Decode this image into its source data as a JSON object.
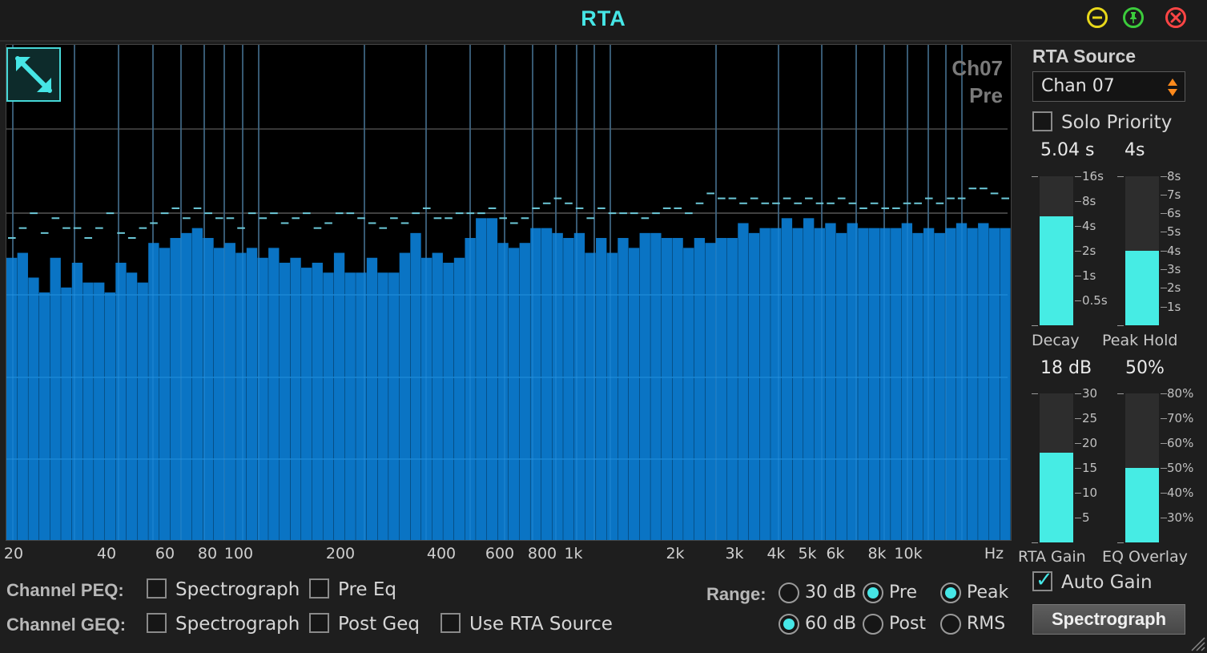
{
  "window": {
    "title": "RTA",
    "minimize_color": "#f0e020",
    "pin_color": "#3ccc3c",
    "close_color": "#ff4040"
  },
  "graph": {
    "channel": "Ch07",
    "tap": "Pre",
    "freq_labels": [
      "20",
      "40",
      "60",
      "80",
      "100",
      "200",
      "400",
      "600",
      "800",
      "1k",
      "2k",
      "3k",
      "4k",
      "5k",
      "6k",
      "8k",
      "10k",
      "Hz"
    ],
    "bar_color": "#0a74c4",
    "peak_color": "#6cc8d8"
  },
  "chart_data": {
    "type": "bar",
    "x_scale": "log",
    "xlim": [
      20,
      20000
    ],
    "x_unit": "Hz",
    "levels": [
      0.57,
      0.58,
      0.53,
      0.5,
      0.57,
      0.51,
      0.56,
      0.52,
      0.52,
      0.5,
      0.56,
      0.54,
      0.52,
      0.6,
      0.59,
      0.61,
      0.62,
      0.63,
      0.61,
      0.59,
      0.6,
      0.58,
      0.59,
      0.57,
      0.59,
      0.56,
      0.57,
      0.55,
      0.56,
      0.54,
      0.58,
      0.54,
      0.54,
      0.57,
      0.54,
      0.54,
      0.58,
      0.62,
      0.57,
      0.58,
      0.56,
      0.57,
      0.61,
      0.65,
      0.65,
      0.6,
      0.59,
      0.6,
      0.63,
      0.63,
      0.62,
      0.61,
      0.62,
      0.58,
      0.61,
      0.58,
      0.61,
      0.59,
      0.62,
      0.62,
      0.61,
      0.61,
      0.59,
      0.61,
      0.6,
      0.61,
      0.61,
      0.64,
      0.62,
      0.63,
      0.63,
      0.65,
      0.63,
      0.65,
      0.63,
      0.64,
      0.62,
      0.64,
      0.63,
      0.63,
      0.63,
      0.63,
      0.64,
      0.62,
      0.63,
      0.62,
      0.63,
      0.64,
      0.63,
      0.64,
      0.63,
      0.63
    ],
    "peaks": [
      0.61,
      0.63,
      0.66,
      0.62,
      0.65,
      0.63,
      0.63,
      0.61,
      0.63,
      0.66,
      0.62,
      0.61,
      0.63,
      0.64,
      0.66,
      0.67,
      0.65,
      0.67,
      0.66,
      0.65,
      0.65,
      0.63,
      0.66,
      0.65,
      0.66,
      0.64,
      0.65,
      0.66,
      0.63,
      0.64,
      0.66,
      0.66,
      0.65,
      0.64,
      0.63,
      0.65,
      0.64,
      0.66,
      0.67,
      0.65,
      0.65,
      0.66,
      0.66,
      0.66,
      0.67,
      0.65,
      0.64,
      0.65,
      0.67,
      0.68,
      0.69,
      0.68,
      0.67,
      0.65,
      0.67,
      0.66,
      0.66,
      0.66,
      0.65,
      0.66,
      0.67,
      0.67,
      0.66,
      0.68,
      0.7,
      0.69,
      0.69,
      0.68,
      0.69,
      0.68,
      0.68,
      0.69,
      0.68,
      0.69,
      0.68,
      0.68,
      0.69,
      0.68,
      0.67,
      0.68,
      0.67,
      0.67,
      0.68,
      0.68,
      0.69,
      0.68,
      0.69,
      0.69,
      0.71,
      0.71,
      0.7,
      0.69
    ]
  },
  "sidebar": {
    "source_title": "RTA Source",
    "source_value": "Chan 07",
    "solo_priority_label": "Solo Priority",
    "decay": {
      "value_text": "5.04 s",
      "label": "Decay",
      "ticks": [
        "16s",
        "8s",
        "4s",
        "2s",
        "1s",
        "0.5s"
      ],
      "level": 0.73
    },
    "peak_hold": {
      "value_text": "4s",
      "label": "Peak Hold",
      "ticks": [
        "8s",
        "7s",
        "6s",
        "5s",
        "4s",
        "3s",
        "2s",
        "1s"
      ],
      "level": 0.5
    },
    "rta_gain": {
      "value_text": "18 dB",
      "label": "RTA Gain",
      "ticks": [
        "30",
        "25",
        "20",
        "15",
        "10",
        "5"
      ],
      "level": 0.6
    },
    "eq_overlay": {
      "value_text": "50%",
      "label": "EQ Overlay",
      "ticks": [
        "80%",
        "70%",
        "60%",
        "50%",
        "40%",
        "30%"
      ],
      "level": 0.5
    },
    "auto_gain_label": "Auto Gain",
    "spectrograph_button": "Spectrograph"
  },
  "bottom": {
    "peq_label": "Channel PEQ:",
    "geq_label": "Channel GEQ:",
    "spectrograph_label": "Spectrograph",
    "pre_eq_label": "Pre Eq",
    "post_geq_label": "Post Geq",
    "use_rta_source_label": "Use RTA Source",
    "range_label": "Range:",
    "r30_label": "30 dB",
    "r60_label": "60 dB",
    "pre_label": "Pre",
    "post_label": "Post",
    "peak_label": "Peak",
    "rms_label": "RMS"
  }
}
